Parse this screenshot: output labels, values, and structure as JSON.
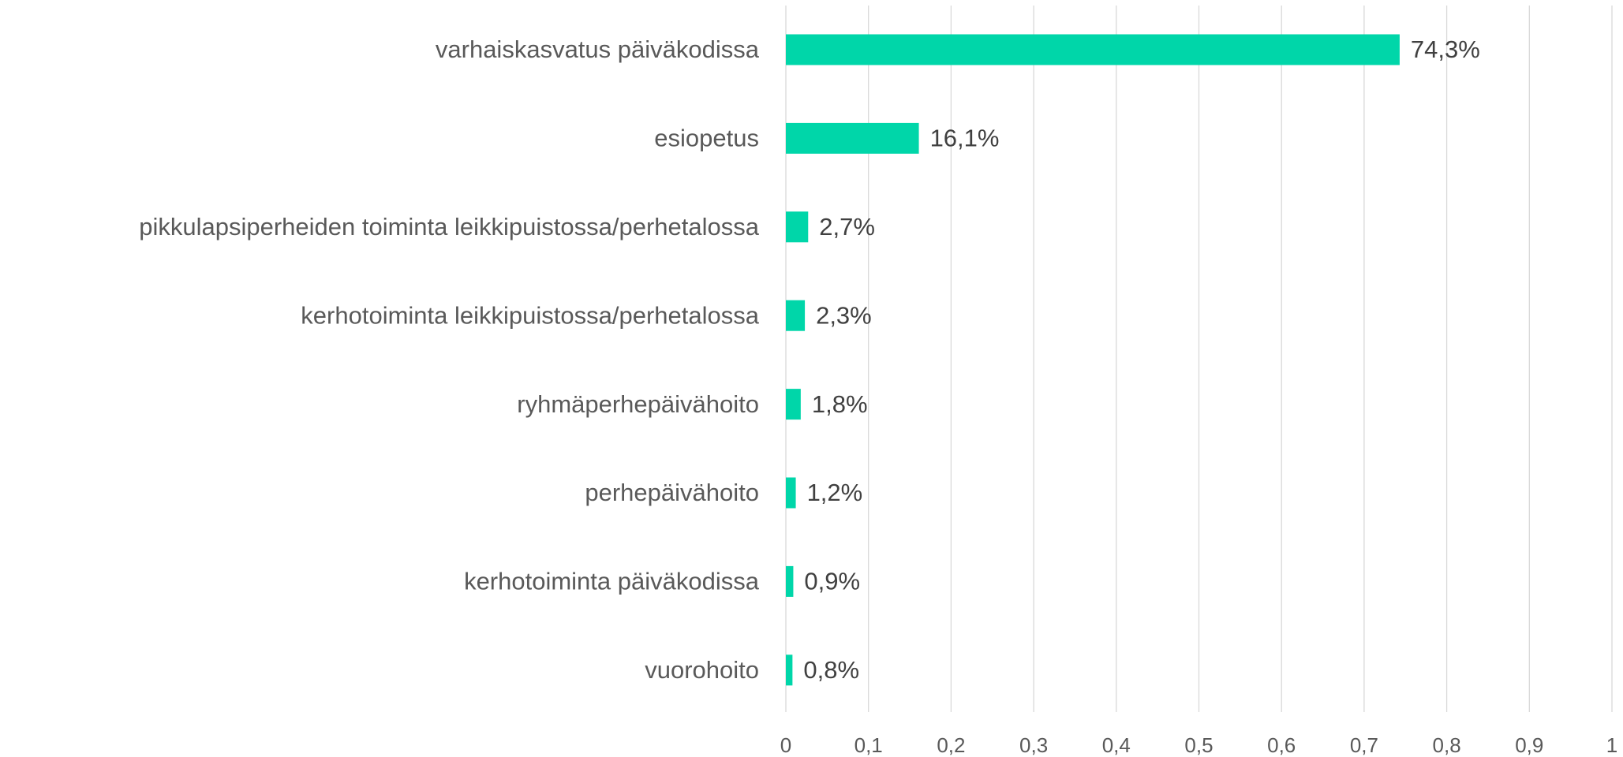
{
  "chart_data": {
    "type": "bar",
    "orientation": "horizontal",
    "categories": [
      "varhaiskasvatus päiväkodissa",
      "esiopetus",
      "pikkulapsiperheiden toiminta leikkipuistossa/perhetalossa",
      "kerhotoiminta leikkipuistossa/perhetalossa",
      "ryhmäperhepäivähoito",
      "perhepäivähoito",
      "kerhotoiminta päiväkodissa",
      "vuorohoito"
    ],
    "values": [
      0.743,
      0.161,
      0.027,
      0.023,
      0.018,
      0.012,
      0.009,
      0.008
    ],
    "value_labels": [
      "74,3%",
      "16,1%",
      "2,7%",
      "2,3%",
      "1,8%",
      "1,2%",
      "0,9%",
      "0,8%"
    ],
    "color": "#00d6a9",
    "xlim": [
      0,
      1
    ],
    "xticks": [
      0,
      {
        "value": 0.1,
        "label": "0,1"
      },
      {
        "value": 0.2,
        "label": "0,2"
      },
      {
        "value": 0.3,
        "label": "0,3"
      },
      {
        "value": 0.4,
        "label": "0,4"
      },
      {
        "value": 0.5,
        "label": "0,5"
      },
      {
        "value": 0.6,
        "label": "0,6"
      },
      {
        "value": 0.7,
        "label": "0,7"
      },
      {
        "value": 0.8,
        "label": "0,8"
      },
      {
        "value": 0.9,
        "label": "0,9"
      },
      1
    ],
    "grid": true
  }
}
